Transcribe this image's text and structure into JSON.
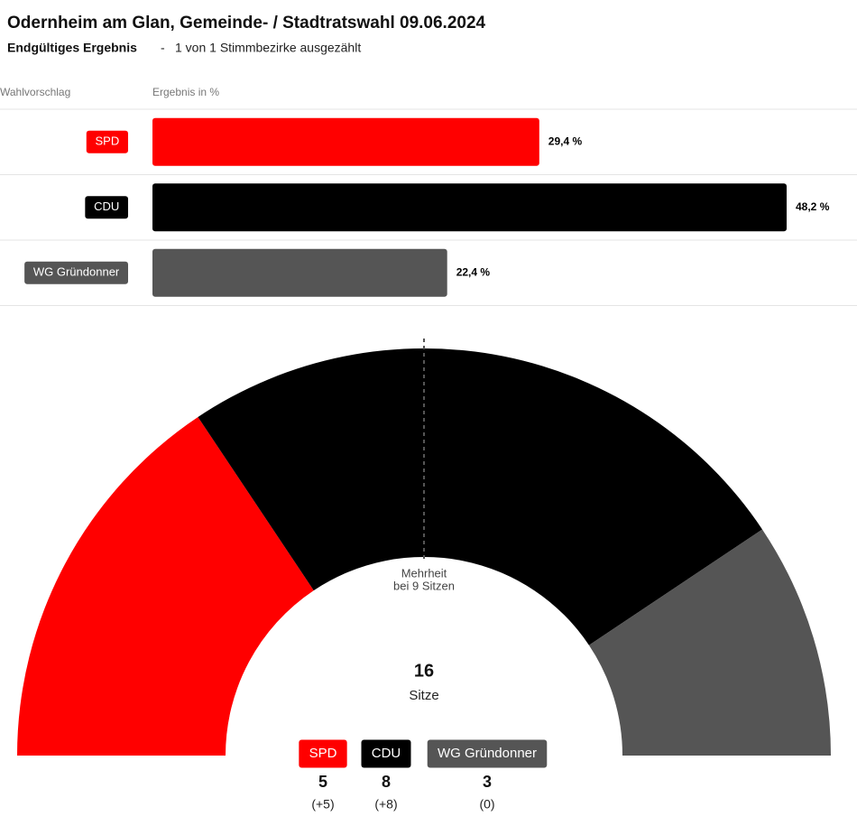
{
  "header": {
    "title": "Odernheim am Glan, Gemeinde- / Stadtratswahl 09.06.2024",
    "status": "Endgültiges Ergebnis",
    "separator": "-",
    "progress": "1 von 1 Stimmbezirke ausgezählt"
  },
  "chart_data": [
    {
      "type": "bar",
      "category_header": "Wahlvorschlag",
      "value_header": "Ergebnis in %",
      "categories": [
        "SPD",
        "CDU",
        "WG Gründonner"
      ],
      "values": [
        29.4,
        48.2,
        22.4
      ],
      "value_labels": [
        "29,4 %",
        "48,2 %",
        "22,4 %"
      ],
      "colors": [
        "#ff0000",
        "#000000",
        "#555555"
      ]
    },
    {
      "type": "parliament",
      "categories": [
        "SPD",
        "CDU",
        "WG Gründonner"
      ],
      "values": [
        5,
        8,
        3
      ],
      "colors": [
        "#ff0000",
        "#000000",
        "#555555"
      ],
      "changes": [
        "(+5)",
        "(+8)",
        "(0)"
      ],
      "total": 16,
      "total_label": "Sitze",
      "annotation": [
        "Mehrheit",
        "bei 9 Sitzen"
      ]
    }
  ]
}
